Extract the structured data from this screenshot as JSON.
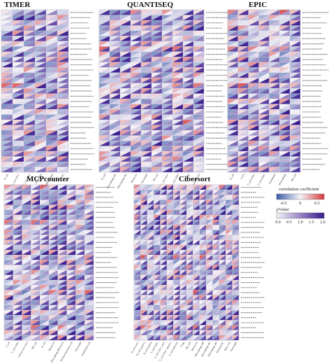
{
  "panels": [
    {
      "title": "TIMER",
      "rows": 31,
      "cols": 6,
      "col_labels": [
        "B_cell",
        "T_cell CD4+",
        "T_cell CD8+",
        "Neutrophil",
        "Macrophage",
        "DC"
      ]
    },
    {
      "title": "QUANTISEQ",
      "rows": 31,
      "cols": 10,
      "col_labels": [
        "B_cell",
        "Macrophage M1",
        "Macrophage M2",
        "Monocyte",
        "Neutrophil",
        "NK_cell",
        "T_cell CD4+",
        "T_cell CD8+",
        "Tregs",
        "uncharacterized cell"
      ]
    },
    {
      "title": "EPIC",
      "rows": 31,
      "cols": 7,
      "col_labels": [
        "B_cell",
        "CAFs",
        "T_cell CD4+",
        "T_cell CD8+",
        "Endothelial",
        "Macrophage",
        "NK_cell"
      ]
    },
    {
      "title": "MCPcounter",
      "rows": 31,
      "cols": 10,
      "col_labels": [
        "T_cell",
        "T_cell CD8+",
        "cytotoxicity score",
        "NK_cell",
        "B_cell",
        "Monocyte",
        "Macrophage/Monocyte",
        "Myeloid dendritic cell",
        "Neutrophil",
        "Endothelial cell"
      ]
    },
    {
      "title": "Cibersort",
      "rows": 31,
      "cols": 16,
      "col_labels": [
        "B_cell naive",
        "B_cell memory",
        "B_cell plasma",
        "T_cell CD8+",
        "T_cell CD4+ naive",
        "T_cell CD4+ memory",
        "T_cell follicular",
        "Tregs",
        "NK_cell",
        "Monocyte",
        "Macrophage M0",
        "Macrophage M1",
        "Macrophage M2",
        "Myeloid DC",
        "Mast_cell",
        "Neutrophil"
      ]
    }
  ],
  "legend": {
    "corr_title": "correlation coefficient",
    "corr_ticks": [
      "-0.5",
      "0",
      "0.5"
    ],
    "p_title": "pValue",
    "p_ticks": [
      "0.0",
      "0.5",
      "1.0",
      "1.5",
      "2.0"
    ]
  },
  "colors": {
    "negative": "#2c4fa0",
    "neutral": "#f4f4f8",
    "positive": "#d42b2b",
    "p_low": "#f2eef7",
    "p_high": "#3b1d8f"
  }
}
